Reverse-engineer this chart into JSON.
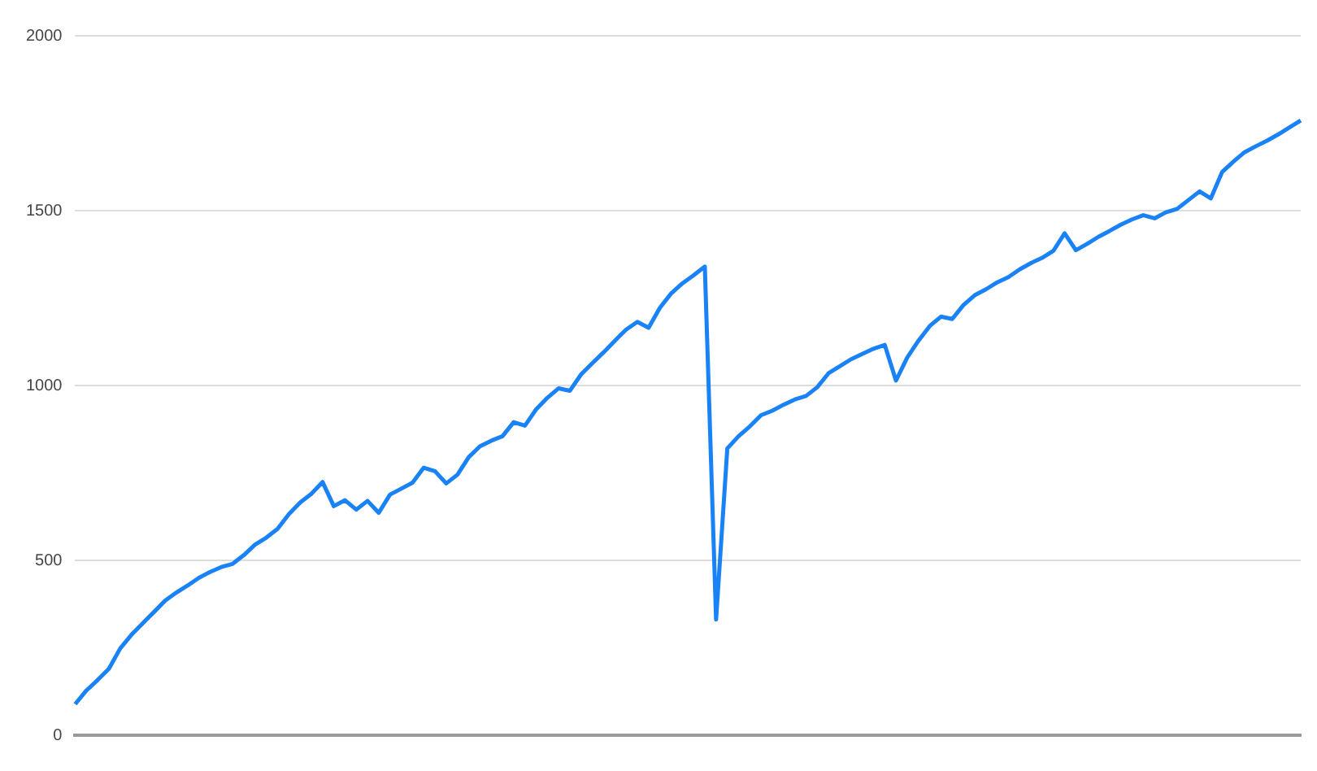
{
  "chart_data": {
    "type": "line",
    "categories": [
      null,
      null,
      null,
      null,
      null,
      null,
      null,
      null,
      null,
      null,
      null,
      null,
      null,
      null,
      null,
      null,
      null,
      null,
      null,
      null,
      null,
      null,
      null,
      null,
      null,
      null,
      null,
      null,
      null,
      null,
      null,
      null,
      null,
      null,
      null,
      null,
      null,
      null,
      null,
      null,
      null,
      null,
      null,
      null,
      null,
      null,
      null,
      null,
      null,
      null,
      null,
      null,
      null,
      null,
      null,
      null,
      null,
      null,
      null,
      null,
      null,
      null,
      null,
      null,
      null,
      null,
      null,
      null,
      null,
      null,
      null,
      null,
      null,
      null,
      null,
      null,
      null,
      null,
      null,
      null,
      null,
      null,
      null,
      null,
      null,
      null,
      null,
      null,
      null,
      null,
      null,
      null,
      null,
      null,
      null,
      null,
      null,
      null,
      null,
      null,
      null,
      null,
      null,
      null,
      null,
      null,
      null,
      null,
      null,
      null
    ],
    "series": [
      {
        "color": "#1a82f7",
        "values": [
          89,
          128,
          158,
          190,
          248,
          287,
          320,
          352,
          385,
          408,
          428,
          450,
          467,
          481,
          490,
          515,
          545,
          565,
          590,
          632,
          665,
          690,
          724,
          655,
          672,
          645,
          670,
          636,
          688,
          705,
          722,
          765,
          755,
          720,
          745,
          795,
          826,
          842,
          855,
          895,
          885,
          932,
          965,
          992,
          985,
          1032,
          1064,
          1095,
          1128,
          1160,
          1182,
          1165,
          1222,
          1263,
          1292,
          1315,
          1340,
          331,
          820,
          855,
          883,
          915,
          928,
          945,
          960,
          970,
          995,
          1035,
          1055,
          1075,
          1090,
          1105,
          1116,
          1014,
          1080,
          1128,
          1170,
          1197,
          1190,
          1230,
          1258,
          1275,
          1295,
          1310,
          1332,
          1350,
          1365,
          1385,
          1435,
          1387,
          1405,
          1425,
          1442,
          1460,
          1475,
          1487,
          1478,
          1495,
          1505,
          1530,
          1555,
          1535,
          1610,
          1640,
          1667,
          1684,
          1700,
          1718,
          1738,
          1758
        ]
      }
    ],
    "ylim": [
      0,
      2000
    ],
    "yticks": [
      0,
      500,
      1000,
      1500,
      2000
    ],
    "grid": "y",
    "tick_labels": "y",
    "marker": "none",
    "line_style": "solid"
  }
}
